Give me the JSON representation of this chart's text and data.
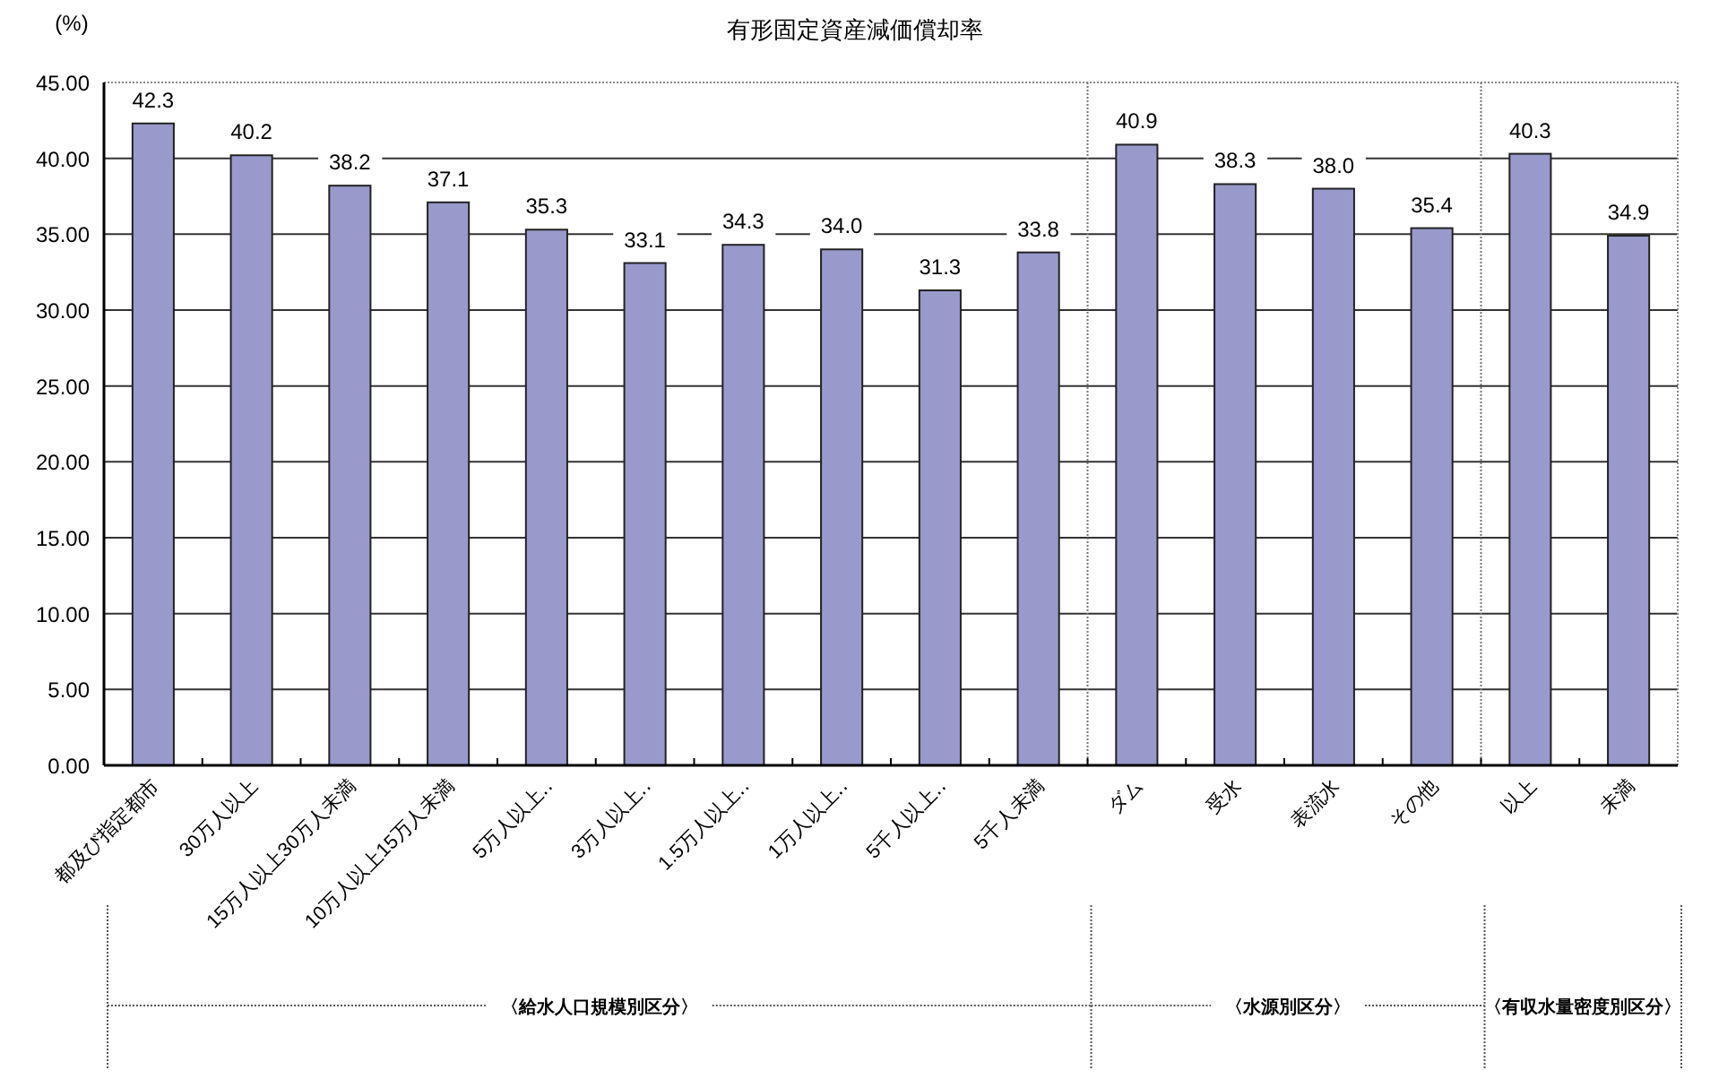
{
  "chart_data": {
    "type": "bar",
    "title": "有形固定資産減価償却率",
    "ylabel": "(%)",
    "categories": [
      "都及び指定都市",
      "30万人以上",
      "15万人以上30万人未満",
      "10万人以上15万人未満",
      "5万人以上‥",
      "3万人以上‥",
      "1.5万人以上‥",
      "1万人以上‥",
      "5千人以上‥",
      "5千人未満",
      "ダム",
      "受水",
      "表流水",
      "その他",
      "以上",
      "未満"
    ],
    "values": [
      42.3,
      40.2,
      38.2,
      37.1,
      35.3,
      33.1,
      34.3,
      34.0,
      31.3,
      33.8,
      40.9,
      38.3,
      38.0,
      35.4,
      40.3,
      34.9
    ],
    "value_labels": [
      "42.3",
      "40.2",
      "38.2",
      "37.1",
      "35.3",
      "33.1",
      "34.3",
      "34.0",
      "31.3",
      "33.8",
      "40.9",
      "38.3",
      "38.0",
      "35.4",
      "40.3",
      "34.9"
    ],
    "color": "#9999cc",
    "ylim": [
      0,
      45
    ],
    "yticks": [
      {
        "value": 0,
        "label": "0.00"
      },
      {
        "value": 5,
        "label": "5.00"
      },
      {
        "value": 10,
        "label": "10.00"
      },
      {
        "value": 15,
        "label": "15.00"
      },
      {
        "value": 20,
        "label": "20.00"
      },
      {
        "value": 25,
        "label": "25.00"
      },
      {
        "value": 30,
        "label": "30.00"
      },
      {
        "value": 35,
        "label": "35.00"
      },
      {
        "value": 40,
        "label": "40.00"
      },
      {
        "value": 45,
        "label": "45.00"
      }
    ],
    "grid": "y",
    "annotations": [
      "〈給水人口規模別区分〉",
      "〈水源別区分〉",
      "〈有収水量密度別区分〉"
    ]
  }
}
